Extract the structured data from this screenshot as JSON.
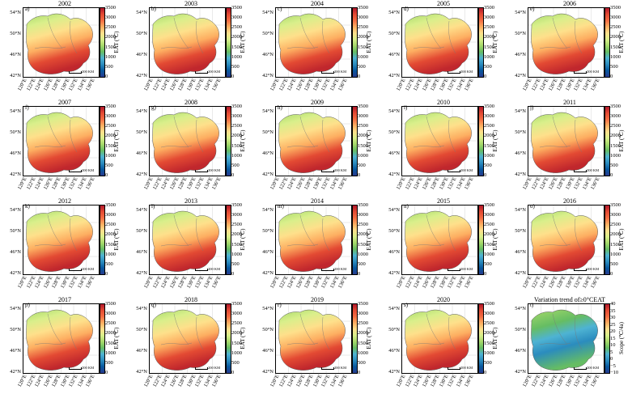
{
  "panels": [
    {
      "letter": "a)",
      "title": "2002"
    },
    {
      "letter": "b)",
      "title": "2003"
    },
    {
      "letter": "c)",
      "title": "2004"
    },
    {
      "letter": "d)",
      "title": "2005"
    },
    {
      "letter": "e)",
      "title": "2006"
    },
    {
      "letter": "f)",
      "title": "2007"
    },
    {
      "letter": "g)",
      "title": "2008"
    },
    {
      "letter": "h)",
      "title": "2009"
    },
    {
      "letter": "i)",
      "title": "2010"
    },
    {
      "letter": "j)",
      "title": "2011"
    },
    {
      "letter": "k)",
      "title": "2012"
    },
    {
      "letter": "l)",
      "title": "2013"
    },
    {
      "letter": "m)",
      "title": "2014"
    },
    {
      "letter": "n)",
      "title": "2015"
    },
    {
      "letter": "o)",
      "title": "2016"
    },
    {
      "letter": "p)",
      "title": "2017"
    },
    {
      "letter": "q)",
      "title": "2018"
    },
    {
      "letter": "r)",
      "title": "2019"
    },
    {
      "letter": "s)",
      "title": "2020"
    },
    {
      "letter": "t)",
      "title": "Variation trend of≥0°CEAT",
      "trend": true
    }
  ],
  "lat_labels": [
    "54°N",
    "50°N",
    "46°N",
    "42°N"
  ],
  "lon_labels": [
    "120°E",
    "122°E",
    "124°E",
    "126°E",
    "128°E",
    "130°E",
    "132°E",
    "134°E",
    "136°E"
  ],
  "eat_colorbar": {
    "label": "EAT (℃)",
    "ticks": [
      "3500",
      "3000",
      "2500",
      "2000",
      "1500",
      "1000",
      "500",
      "0"
    ],
    "colors": [
      "#b2182b",
      "#e34a33",
      "#f46d43",
      "#fdae61",
      "#fee08b",
      "#d9ef8b",
      "#a6d96a",
      "#66bd63",
      "#4eb3d3",
      "#2b8cbe",
      "#08589e",
      "#273b8f"
    ]
  },
  "trend_colorbar": {
    "label": "Scope (℃/4a)",
    "ticks": [
      "40",
      "35",
      "30",
      "25",
      "20",
      "15",
      "10",
      "5",
      "0",
      "−5",
      "−10"
    ],
    "colors": [
      "#b2182b",
      "#e34a33",
      "#f46d43",
      "#fdae61",
      "#fee08b",
      "#d9ef8b",
      "#a6d96a",
      "#66bd63",
      "#4eb3d3",
      "#2b8cbe",
      "#08589e",
      "#273b8f"
    ]
  },
  "scale_bar_label": "200 KM"
}
